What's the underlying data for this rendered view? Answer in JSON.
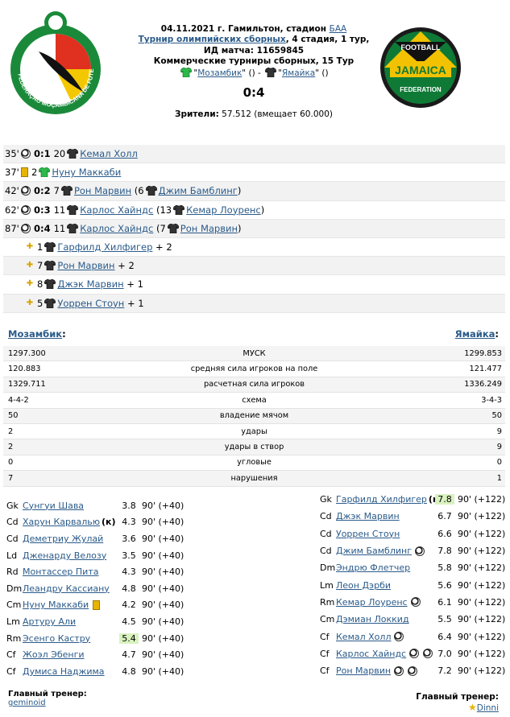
{
  "header": {
    "date_line_prefix": "04.11.2021 г. Гамильтон, стадион ",
    "stadium_link": "БАА",
    "tournament_link": "Турнир олимпийских сборных",
    "tournament_suffix": ", 4 стадия, 1 тур,",
    "match_id": "ИД матча: 11659845",
    "commercial": "Коммерческие турниры сборных, 15 Тур",
    "home_team": "Мозамбик",
    "away_team": "Ямайка",
    "home_extra": " () - ",
    "away_extra": " ()",
    "score": "0:4",
    "spectators_label": "Зрители:",
    "spectators_value": " 57.512 (вмещает 60.000)",
    "home_logo_text": "FEDERAÇÃO MOÇAMBICANA DE FUTEBOL",
    "away_logo_top": "FOOTBALL",
    "away_logo_mid": "JAMAICA",
    "away_logo_bot": "FEDERATION"
  },
  "events": [
    {
      "minute": "35'",
      "type": "goal",
      "score": "0:1",
      "num": "20",
      "player": "Кемал Холл",
      "assist_num": "",
      "assist": "",
      "suffix": ""
    },
    {
      "minute": "37'",
      "type": "card",
      "score": "",
      "num": "2",
      "player": "Нуну Маккаби",
      "assist_num": "",
      "assist": "",
      "suffix": ""
    },
    {
      "minute": "42'",
      "type": "goal",
      "score": "0:2",
      "num": "7",
      "player": "Рон Марвин",
      "assist_num": "(6",
      "assist": "Джим Бамблинг",
      "suffix": ")"
    },
    {
      "minute": "62'",
      "type": "goal",
      "score": "0:3",
      "num": "11",
      "player": "Карлос Хайндс",
      "assist_num": "(13",
      "assist": "Кемар Лоуренс",
      "suffix": ")"
    },
    {
      "minute": "87'",
      "type": "goal",
      "score": "0:4",
      "num": "11",
      "player": "Карлос Хайндс",
      "assist_num": "(7",
      "assist": "Рон Марвин",
      "suffix": ")"
    },
    {
      "minute": "",
      "type": "plus",
      "score": "",
      "num": "1",
      "player": "Гарфилд Хилфигер",
      "assist_num": "",
      "assist": "",
      "suffix": "+ 2"
    },
    {
      "minute": "",
      "type": "plus",
      "score": "",
      "num": "7",
      "player": "Рон Марвин",
      "assist_num": "",
      "assist": "",
      "suffix": "+ 2"
    },
    {
      "minute": "",
      "type": "plus",
      "score": "",
      "num": "8",
      "player": "Джэк Марвин",
      "assist_num": "",
      "assist": "",
      "suffix": "+ 1"
    },
    {
      "minute": "",
      "type": "plus",
      "score": "",
      "num": "5",
      "player": "Уоррен Стоун",
      "assist_num": "",
      "assist": "",
      "suffix": "+ 1"
    }
  ],
  "teams": {
    "left": "Мозамбик",
    "right": "Ямайка",
    "sep": ":"
  },
  "stats": [
    {
      "l": "1297.300",
      "m": "МУСК",
      "r": "1299.853"
    },
    {
      "l": "120.883",
      "m": "средняя сила игроков на поле",
      "r": "121.477"
    },
    {
      "l": "1329.711",
      "m": "расчетная сила игроков",
      "r": "1336.249"
    },
    {
      "l": "4-4-2",
      "m": "схема",
      "r": "3-4-3"
    },
    {
      "l": "50",
      "m": "владение мячом",
      "r": "50"
    },
    {
      "l": "2",
      "m": "удары",
      "r": "9"
    },
    {
      "l": "2",
      "m": "удары в створ",
      "r": "9"
    },
    {
      "l": "0",
      "m": "угловые",
      "r": "0"
    },
    {
      "l": "7",
      "m": "нарушения",
      "r": "1"
    }
  ],
  "home_lineup": [
    {
      "pos": "Gk",
      "name": "Сунгуи Шава",
      "rating": "3.8",
      "mins": "90' (+40)",
      "hl": false,
      "extra": ""
    },
    {
      "pos": "Cd",
      "name": "Харун Карвалью",
      "rating": "4.3",
      "mins": "90' (+40)",
      "hl": false,
      "extra": "(к)"
    },
    {
      "pos": "Cd",
      "name": "Деметриу Жулай",
      "rating": "3.6",
      "mins": "90' (+40)",
      "hl": false,
      "extra": ""
    },
    {
      "pos": "Ld",
      "name": "Дженарду Велозу",
      "rating": "3.5",
      "mins": "90' (+40)",
      "hl": false,
      "extra": ""
    },
    {
      "pos": "Rd",
      "name": "Монтассер Пита",
      "rating": "4.3",
      "mins": "90' (+40)",
      "hl": false,
      "extra": ""
    },
    {
      "pos": "Dm",
      "name": "Леандру Кассиану",
      "rating": "4.8",
      "mins": "90' (+40)",
      "hl": false,
      "extra": ""
    },
    {
      "pos": "Cm",
      "name": "Нуну Маккаби",
      "rating": "4.2",
      "mins": "90' (+40)",
      "hl": false,
      "extra": "card"
    },
    {
      "pos": "Lm",
      "name": "Артуру Али",
      "rating": "4.5",
      "mins": "90' (+40)",
      "hl": false,
      "extra": ""
    },
    {
      "pos": "Rm",
      "name": "Эсенго Кастру",
      "rating": "5.4",
      "mins": "90' (+40)",
      "hl": true,
      "extra": ""
    },
    {
      "pos": "Cf",
      "name": "Жоэл Эбенги",
      "rating": "4.7",
      "mins": "90' (+40)",
      "hl": false,
      "extra": ""
    },
    {
      "pos": "Cf",
      "name": "Думиса Наджима",
      "rating": "4.8",
      "mins": "90' (+40)",
      "hl": false,
      "extra": ""
    }
  ],
  "away_lineup": [
    {
      "pos": "Gk",
      "name": "Гарфилд Хилфигер",
      "rating": "7.8",
      "mins": "90' (+122)",
      "hl": true,
      "extra": "(к)"
    },
    {
      "pos": "Cd",
      "name": "Джэк Марвин",
      "rating": "6.7",
      "mins": "90' (+122)",
      "hl": false,
      "extra": ""
    },
    {
      "pos": "Cd",
      "name": "Уоррен Стоун",
      "rating": "6.6",
      "mins": "90' (+122)",
      "hl": false,
      "extra": ""
    },
    {
      "pos": "Cd",
      "name": "Джим Бамблинг",
      "rating": "7.8",
      "mins": "90' (+122)",
      "hl": false,
      "extra": "ball1"
    },
    {
      "pos": "Dm",
      "name": "Эндрю Флетчер",
      "rating": "5.8",
      "mins": "90' (+122)",
      "hl": false,
      "extra": ""
    },
    {
      "pos": "Lm",
      "name": "Леон Дэрби",
      "rating": "5.6",
      "mins": "90' (+122)",
      "hl": false,
      "extra": ""
    },
    {
      "pos": "Rm",
      "name": "Кемар Лоуренс",
      "rating": "6.1",
      "mins": "90' (+122)",
      "hl": false,
      "extra": "ball1"
    },
    {
      "pos": "Cm",
      "name": "Дэмиан Локкид",
      "rating": "5.5",
      "mins": "90' (+122)",
      "hl": false,
      "extra": ""
    },
    {
      "pos": "Cf",
      "name": "Кемал Холл",
      "rating": "6.4",
      "mins": "90' (+122)",
      "hl": false,
      "extra": "ball1"
    },
    {
      "pos": "Cf",
      "name": "Карлос Хайндс",
      "rating": "7.0",
      "mins": "90' (+122)",
      "hl": false,
      "extra": "ball2"
    },
    {
      "pos": "Cf",
      "name": "Рон Марвин",
      "rating": "7.2",
      "mins": "90' (+122)",
      "hl": false,
      "extra": "ball2"
    }
  ],
  "coaches": {
    "label": "Главный тренер:",
    "home": "geminoid",
    "away": "Dinni"
  },
  "colors": {
    "link": "#2b5b8a",
    "home_shirt": "#2db84a",
    "away_shirt": "#333333",
    "highlight": "#d9f2c0"
  }
}
